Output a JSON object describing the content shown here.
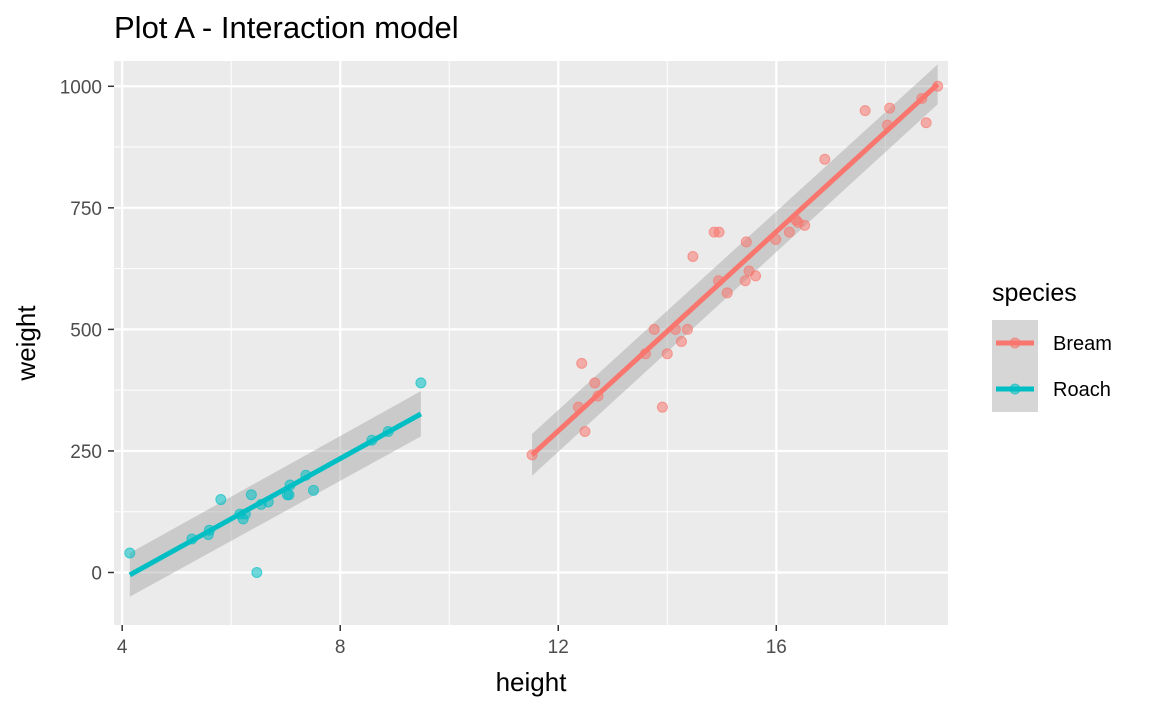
{
  "chart_data": {
    "type": "scatter",
    "title": "Plot A - Interaction model",
    "xlabel": "height",
    "ylabel": "weight",
    "xlim": [
      3.85,
      19.15
    ],
    "ylim": [
      -108,
      1052
    ],
    "x_ticks": [
      4,
      8,
      12,
      16
    ],
    "x_tick_labels": [
      "4",
      "8",
      "12",
      "16"
    ],
    "x_minor_ticks": [
      6,
      10,
      14,
      18
    ],
    "y_ticks": [
      0,
      250,
      500,
      750,
      1000
    ],
    "y_tick_labels": [
      "0",
      "250",
      "500",
      "750",
      "1000"
    ],
    "y_minor_ticks": [
      -125,
      125,
      375,
      625,
      875
    ],
    "grid": true,
    "legend": {
      "title": "species",
      "position": "right"
    },
    "series": [
      {
        "name": "Bream",
        "color": "#F8766D",
        "points": [
          [
            11.52,
            242
          ],
          [
            12.37,
            340
          ],
          [
            12.43,
            430
          ],
          [
            12.49,
            290
          ],
          [
            12.67,
            390
          ],
          [
            12.73,
            363
          ],
          [
            13.6,
            450
          ],
          [
            13.76,
            500
          ],
          [
            13.91,
            340
          ],
          [
            14.0,
            450
          ],
          [
            14.15,
            500
          ],
          [
            14.26,
            475
          ],
          [
            14.37,
            500
          ],
          [
            14.47,
            650
          ],
          [
            14.86,
            700
          ],
          [
            14.94,
            600
          ],
          [
            14.95,
            700
          ],
          [
            15.1,
            575
          ],
          [
            15.43,
            600
          ],
          [
            15.45,
            680
          ],
          [
            15.5,
            620
          ],
          [
            15.62,
            610
          ],
          [
            15.99,
            685
          ],
          [
            16.24,
            700
          ],
          [
            16.36,
            725
          ],
          [
            16.4,
            720
          ],
          [
            16.52,
            714
          ],
          [
            16.89,
            850
          ],
          [
            17.63,
            950
          ],
          [
            18.04,
            920
          ],
          [
            18.08,
            955
          ],
          [
            18.67,
            975
          ],
          [
            18.75,
            925
          ],
          [
            18.96,
            1000
          ]
        ],
        "fit": {
          "x": [
            11.52,
            18.96
          ],
          "y": [
            242,
            1004
          ],
          "ci_lower": [
            199,
            963
          ],
          "ci_upper": [
            285,
            1045
          ]
        }
      },
      {
        "name": "Roach",
        "color": "#00BFC4",
        "points": [
          [
            4.14,
            40
          ],
          [
            5.28,
            69
          ],
          [
            5.58,
            78
          ],
          [
            5.6,
            87
          ],
          [
            5.81,
            150
          ],
          [
            6.16,
            120
          ],
          [
            6.22,
            110
          ],
          [
            6.26,
            120
          ],
          [
            6.37,
            160
          ],
          [
            6.47,
            0
          ],
          [
            6.55,
            140
          ],
          [
            6.68,
            145
          ],
          [
            7.03,
            160
          ],
          [
            7.08,
            180
          ],
          [
            7.06,
            160
          ],
          [
            7.37,
            200
          ],
          [
            7.51,
            169
          ],
          [
            8.58,
            272
          ],
          [
            8.88,
            290
          ],
          [
            9.48,
            390
          ]
        ],
        "fit": {
          "x": [
            4.14,
            9.48
          ],
          "y": [
            -5,
            326
          ],
          "ci_lower": [
            -50,
            280
          ],
          "ci_upper": [
            40,
            373
          ]
        }
      }
    ]
  }
}
